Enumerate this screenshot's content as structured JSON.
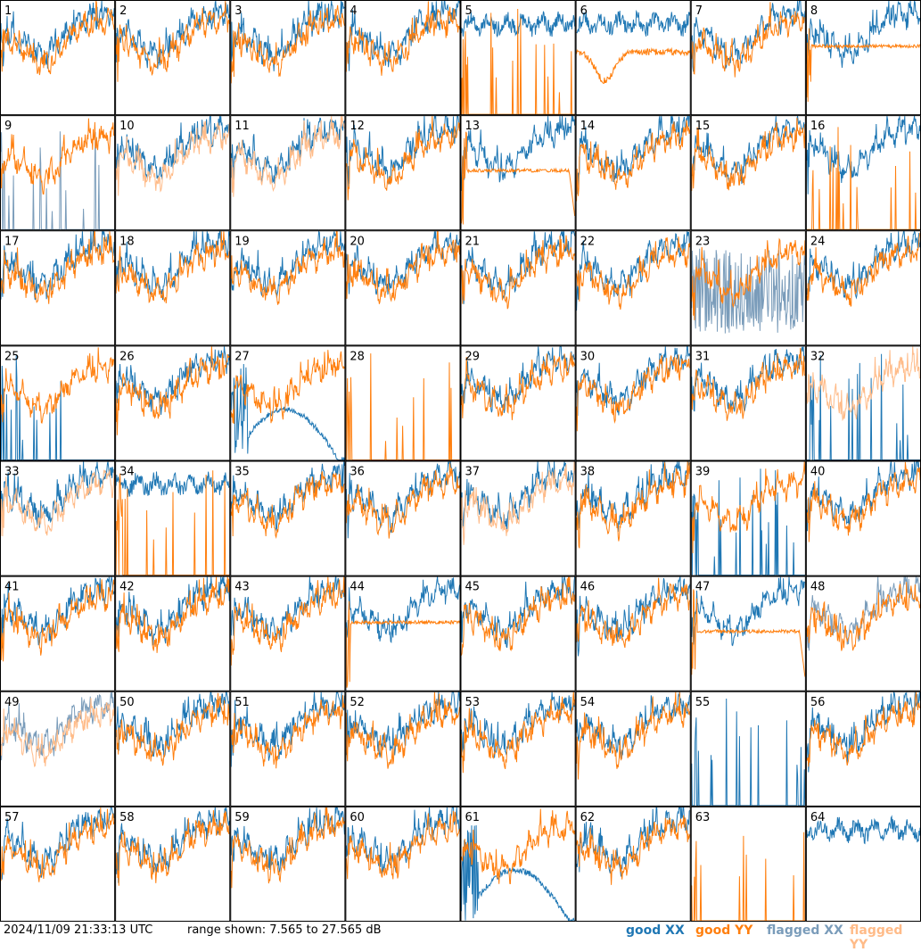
{
  "chart_data": {
    "type": "line",
    "rows": 8,
    "cols": 8,
    "panel_labels": [
      "1",
      "2",
      "3",
      "4",
      "5",
      "6",
      "7",
      "8",
      "9",
      "10",
      "11",
      "12",
      "13",
      "14",
      "15",
      "16",
      "17",
      "18",
      "19",
      "20",
      "21",
      "22",
      "23",
      "24",
      "25",
      "26",
      "27",
      "28",
      "29",
      "30",
      "31",
      "32",
      "33",
      "34",
      "35",
      "36",
      "37",
      "38",
      "39",
      "40",
      "41",
      "42",
      "43",
      "44",
      "45",
      "46",
      "47",
      "48",
      "49",
      "50",
      "51",
      "52",
      "53",
      "54",
      "55",
      "56",
      "57",
      "58",
      "59",
      "60",
      "61",
      "62",
      "63",
      "64"
    ],
    "ylim": [
      7.565,
      27.565
    ],
    "units": "dB",
    "flagged_xx": [
      9,
      23,
      48,
      49
    ],
    "flagged_yy": [
      10,
      11,
      32,
      33,
      37,
      49
    ],
    "special": {
      "5": {
        "xx": "high",
        "yy": "spike"
      },
      "6": {
        "xx": "high",
        "yy": "dip"
      },
      "8": {
        "xx": "normal",
        "yy": "flat"
      },
      "9": {
        "xx": "spike",
        "yy": "normal"
      },
      "13": {
        "xx": "normal",
        "yy": "flat_drop"
      },
      "16": {
        "xx": "normal",
        "yy": "spike"
      },
      "23": {
        "xx": "noise",
        "yy": "normal"
      },
      "25": {
        "xx": "spike",
        "yy": "normal"
      },
      "27": {
        "xx": "low_dome",
        "yy": "normal"
      },
      "28": {
        "xx": "none",
        "yy": "spike"
      },
      "32": {
        "xx": "spike",
        "yy": "normal"
      },
      "34": {
        "xx": "high",
        "yy": "spike"
      },
      "39": {
        "xx": "spike",
        "yy": "normal"
      },
      "44": {
        "xx": "normal",
        "yy": "flat"
      },
      "47": {
        "xx": "normal",
        "yy": "flat_drop"
      },
      "55": {
        "xx": "spike",
        "yy": "none"
      },
      "61": {
        "xx": "low_dome",
        "yy": "normal"
      },
      "63": {
        "xx": "none",
        "yy": "spike"
      },
      "64": {
        "xx": "high",
        "yy": "none"
      }
    }
  },
  "footer": {
    "timestamp": "2024/11/09 21:33:13 UTC",
    "range_text": "range shown: 7.565 to 27.565 dB"
  },
  "legend": [
    {
      "label": "good XX",
      "color": "#1f77b4"
    },
    {
      "label": "good YY",
      "color": "#ff7f0e"
    },
    {
      "label": "flagged XX",
      "color": "#7a9cba"
    },
    {
      "label": "flagged YY",
      "color": "#ffbb88"
    }
  ],
  "colors": {
    "xx": "#1f77b4",
    "yy": "#ff7f0e",
    "flagged_xx": "#7a9cba",
    "flagged_yy": "#ffbb88"
  }
}
